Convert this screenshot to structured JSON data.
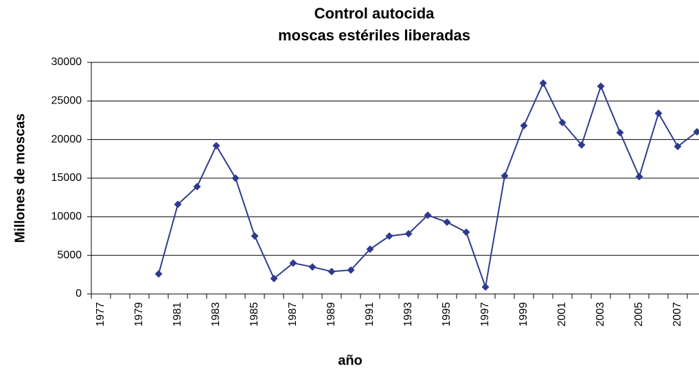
{
  "chart_data": {
    "type": "line",
    "title": [
      "Control autocida",
      "moscas estériles liberadas"
    ],
    "x_label": "año",
    "y_label": "Millones de moscas",
    "categories": [
      "1977",
      null,
      "1979",
      null,
      "1981",
      null,
      "1983",
      null,
      "1985",
      null,
      "1987",
      null,
      "1989",
      null,
      "1991",
      null,
      "1993",
      null,
      "1995",
      null,
      "1997",
      null,
      "1999",
      null,
      "2001",
      null,
      "2003",
      null,
      "2005",
      null,
      "2007",
      null
    ],
    "series": [
      {
        "name": "moscas estériles liberadas",
        "color": "#2e3a8f",
        "values": [
          null,
          null,
          null,
          2600,
          11600,
          13900,
          19200,
          15000,
          7500,
          2000,
          4000,
          3500,
          2900,
          3100,
          5800,
          7500,
          7800,
          10200,
          9300,
          8000,
          900,
          15300,
          21800,
          27300,
          22200,
          19300,
          26900,
          20900,
          15200,
          23400,
          19100,
          21000
        ]
      }
    ],
    "ylim": [
      0,
      30000
    ],
    "yticks": [
      0,
      5000,
      10000,
      15000,
      20000,
      25000,
      30000
    ],
    "grid": true
  }
}
